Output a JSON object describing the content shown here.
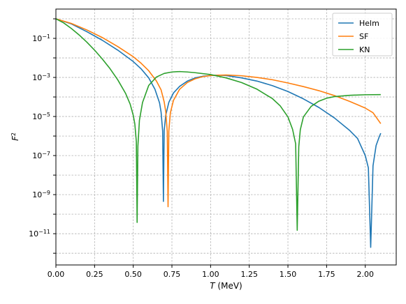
{
  "chart_data": {
    "type": "line",
    "xlabel": {
      "italic": "T",
      "rest": " (MeV)"
    },
    "ylabel": {
      "base": "F",
      "sup": "2"
    },
    "xlim": [
      0.0,
      2.2
    ],
    "ylim_log10": [
      -12.6,
      0.5
    ],
    "log_scale_y": true,
    "grid": true,
    "legend_placement": "top-right",
    "x_ticks": [
      {
        "value": 0.0,
        "label": "0.00"
      },
      {
        "value": 0.25,
        "label": "0.25"
      },
      {
        "value": 0.5,
        "label": "0.50"
      },
      {
        "value": 0.75,
        "label": "0.75"
      },
      {
        "value": 1.0,
        "label": "1.00"
      },
      {
        "value": 1.25,
        "label": "1.25"
      },
      {
        "value": 1.5,
        "label": "1.50"
      },
      {
        "value": 1.75,
        "label": "1.75"
      },
      {
        "value": 2.0,
        "label": "2.00"
      }
    ],
    "y_ticks": [
      {
        "exp": -1,
        "base": "10",
        "sup": "−1"
      },
      {
        "exp": -3,
        "base": "10",
        "sup": "−3"
      },
      {
        "exp": -5,
        "base": "10",
        "sup": "−5"
      },
      {
        "exp": -7,
        "base": "10",
        "sup": "−7"
      },
      {
        "exp": -9,
        "base": "10",
        "sup": "−9"
      },
      {
        "exp": -11,
        "base": "10",
        "sup": "−11"
      }
    ],
    "series": [
      {
        "name": "Helm",
        "color": "#1f77b4",
        "points": [
          [
            0.0,
            1.0
          ],
          [
            0.1,
            0.55
          ],
          [
            0.2,
            0.22
          ],
          [
            0.3,
            0.08
          ],
          [
            0.4,
            0.025
          ],
          [
            0.5,
            0.0065
          ],
          [
            0.55,
            0.0028
          ],
          [
            0.6,
            0.00095
          ],
          [
            0.64,
            0.00025
          ],
          [
            0.67,
            5e-05
          ],
          [
            0.68,
            1.65e-05
          ],
          [
            0.69,
            1.8e-06
          ],
          [
            0.695,
            4.5e-10
          ],
          [
            0.7,
            1.9e-06
          ],
          [
            0.71,
            1.16e-05
          ],
          [
            0.73,
            5.3e-05
          ],
          [
            0.76,
            0.00016
          ],
          [
            0.8,
            0.00035
          ],
          [
            0.85,
            0.00065
          ],
          [
            0.9,
            0.00095
          ],
          [
            0.95,
            0.00115
          ],
          [
            1.0,
            0.00125
          ],
          [
            1.05,
            0.0013
          ],
          [
            1.1,
            0.00125
          ],
          [
            1.2,
            0.00095
          ],
          [
            1.3,
            0.00065
          ],
          [
            1.4,
            0.00038
          ],
          [
            1.5,
            0.00019
          ],
          [
            1.6,
            8e-05
          ],
          [
            1.7,
            2.9e-05
          ],
          [
            1.8,
            8.5e-06
          ],
          [
            1.9,
            1.9e-06
          ],
          [
            1.95,
            7.5e-07
          ],
          [
            2.0,
            1e-07
          ],
          [
            2.02,
            2.35e-08
          ],
          [
            2.035,
            2e-12
          ],
          [
            2.05,
            3e-08
          ],
          [
            2.07,
            3.3e-07
          ],
          [
            2.09,
            9e-07
          ],
          [
            2.1,
            1.4e-06
          ]
        ]
      },
      {
        "name": "SF",
        "color": "#ff7f0e",
        "points": [
          [
            0.0,
            1.0
          ],
          [
            0.1,
            0.58
          ],
          [
            0.2,
            0.27
          ],
          [
            0.3,
            0.11
          ],
          [
            0.4,
            0.038
          ],
          [
            0.5,
            0.0115
          ],
          [
            0.55,
            0.0054
          ],
          [
            0.6,
            0.0022
          ],
          [
            0.65,
            0.00065
          ],
          [
            0.68,
            0.00023
          ],
          [
            0.7,
            5.6e-05
          ],
          [
            0.71,
            1.75e-05
          ],
          [
            0.72,
            1.7e-06
          ],
          [
            0.725,
            2.4e-10
          ],
          [
            0.73,
            1.8e-06
          ],
          [
            0.74,
            1.55e-05
          ],
          [
            0.76,
            6.7e-05
          ],
          [
            0.8,
            0.00025
          ],
          [
            0.85,
            0.00055
          ],
          [
            0.9,
            0.00085
          ],
          [
            0.95,
            0.0011
          ],
          [
            1.0,
            0.00125
          ],
          [
            1.1,
            0.00133
          ],
          [
            1.2,
            0.00122
          ],
          [
            1.3,
            0.001
          ],
          [
            1.4,
            0.00076
          ],
          [
            1.5,
            0.00052
          ],
          [
            1.6,
            0.00034
          ],
          [
            1.7,
            0.00021
          ],
          [
            1.8,
            0.000118
          ],
          [
            1.9,
            5.9e-05
          ],
          [
            2.0,
            2.7e-05
          ],
          [
            2.05,
            1.56e-05
          ],
          [
            2.1,
            4.3e-06
          ]
        ]
      },
      {
        "name": "KN",
        "color": "#2ca02c",
        "points": [
          [
            0.0,
            1.0
          ],
          [
            0.05,
            0.62
          ],
          [
            0.1,
            0.32
          ],
          [
            0.15,
            0.15
          ],
          [
            0.2,
            0.064
          ],
          [
            0.25,
            0.025
          ],
          [
            0.3,
            0.0088
          ],
          [
            0.35,
            0.0028
          ],
          [
            0.4,
            0.00075
          ],
          [
            0.45,
            0.000155
          ],
          [
            0.48,
            4.3e-05
          ],
          [
            0.5,
            1.15e-05
          ],
          [
            0.51,
            4.3e-06
          ],
          [
            0.52,
            5.2e-07
          ],
          [
            0.525,
            3.8e-11
          ],
          [
            0.53,
            3e-07
          ],
          [
            0.54,
            6.5e-06
          ],
          [
            0.56,
            5.2e-05
          ],
          [
            0.6,
            0.00039
          ],
          [
            0.65,
            0.00105
          ],
          [
            0.7,
            0.0016
          ],
          [
            0.75,
            0.0019
          ],
          [
            0.8,
            0.002
          ],
          [
            0.85,
            0.0019
          ],
          [
            0.9,
            0.00175
          ],
          [
            1.0,
            0.0014
          ],
          [
            1.1,
            0.00095
          ],
          [
            1.2,
            0.00055
          ],
          [
            1.3,
            0.00025
          ],
          [
            1.4,
            8.2e-05
          ],
          [
            1.45,
            3.5e-05
          ],
          [
            1.5,
            9.5e-06
          ],
          [
            1.53,
            2.2e-06
          ],
          [
            1.55,
            4e-07
          ],
          [
            1.56,
            1.5e-11
          ],
          [
            1.57,
            2.8e-07
          ],
          [
            1.58,
            2.1e-06
          ],
          [
            1.6,
            9.5e-06
          ],
          [
            1.65,
            3.3e-05
          ],
          [
            1.7,
            6.1e-05
          ],
          [
            1.75,
            8.6e-05
          ],
          [
            1.8,
            0.000104
          ],
          [
            1.9,
            0.000122
          ],
          [
            2.0,
            0.00013
          ],
          [
            2.1,
            0.000132
          ]
        ]
      }
    ]
  }
}
